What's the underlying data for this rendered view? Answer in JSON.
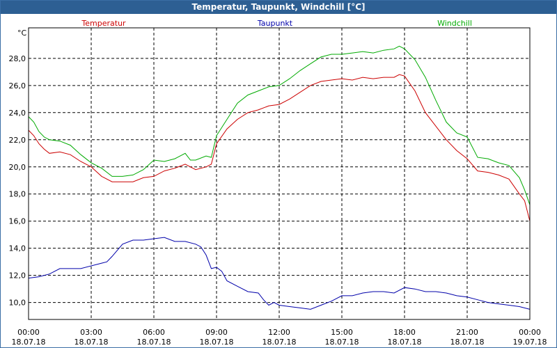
{
  "window": {
    "title": "Temperatur, Taupunkt, Windchill [°C]"
  },
  "chart_data": {
    "type": "line",
    "title": "Temperatur, Taupunkt, Windchill [°C]",
    "ylabel": "°C",
    "xlabel": "",
    "ylim": [
      8.75,
      30.25
    ],
    "xlim": [
      0,
      24
    ],
    "grid": true,
    "legend_position": "top",
    "y_ticks": [
      10,
      12,
      14,
      16,
      18,
      20,
      22,
      24,
      26,
      28
    ],
    "y_tick_labels": [
      "10,0",
      "12,0",
      "14,0",
      "16,0",
      "18,0",
      "20,0",
      "22,0",
      "24,0",
      "26,0",
      "28,0"
    ],
    "x_ticks": [
      0,
      3,
      6,
      9,
      12,
      15,
      18,
      21,
      24
    ],
    "x_tick_times": [
      "00:00",
      "03:00",
      "06:00",
      "09:00",
      "12:00",
      "15:00",
      "18:00",
      "21:00",
      "00:00"
    ],
    "x_tick_dates": [
      "18.07.18",
      "18.07.18",
      "18.07.18",
      "18.07.18",
      "18.07.18",
      "18.07.18",
      "18.07.18",
      "18.07.18",
      "19.07.18"
    ],
    "series": [
      {
        "name": "Temperatur",
        "color": "#cc0000",
        "x": [
          0,
          0.25,
          0.5,
          0.75,
          1,
          1.5,
          2,
          2.5,
          3,
          3.5,
          4,
          4.5,
          5,
          5.5,
          6,
          6.5,
          7,
          7.5,
          7.75,
          8,
          8.5,
          8.75,
          9,
          9.5,
          10,
          10.5,
          11,
          11.5,
          12,
          12.5,
          13,
          13.5,
          14,
          14.5,
          15,
          15.5,
          16,
          16.5,
          17,
          17.5,
          17.75,
          18,
          18.5,
          19,
          19.5,
          20,
          20.5,
          21,
          21.5,
          22,
          22.5,
          23,
          23.5,
          23.75,
          24
        ],
        "values": [
          22.7,
          22.3,
          21.7,
          21.3,
          21.0,
          21.1,
          20.9,
          20.4,
          20.0,
          19.3,
          18.9,
          18.9,
          18.9,
          19.2,
          19.3,
          19.7,
          19.9,
          20.2,
          20.0,
          19.8,
          20.0,
          20.2,
          21.7,
          22.8,
          23.5,
          24.0,
          24.2,
          24.5,
          24.6,
          25.0,
          25.5,
          26.0,
          26.3,
          26.4,
          26.5,
          26.4,
          26.6,
          26.5,
          26.6,
          26.6,
          26.8,
          26.7,
          25.6,
          24.0,
          23.0,
          22.0,
          21.2,
          20.6,
          19.7,
          19.6,
          19.4,
          19.1,
          18.0,
          17.5,
          16.0
        ]
      },
      {
        "name": "Taupunkt",
        "color": "#0000aa",
        "x": [
          0,
          0.5,
          1,
          1.5,
          2,
          2.5,
          3,
          3.5,
          3.75,
          4,
          4.5,
          5,
          5.5,
          6,
          6.5,
          7,
          7.5,
          8,
          8.25,
          8.5,
          8.75,
          9,
          9.25,
          9.5,
          10,
          10.5,
          11,
          11.25,
          11.5,
          11.75,
          12,
          12.5,
          13,
          13.5,
          14,
          14.5,
          15,
          15.5,
          16,
          16.5,
          17,
          17.5,
          18,
          18.5,
          19,
          19.5,
          20,
          20.5,
          21,
          21.5,
          22,
          22.5,
          23,
          23.5,
          24
        ],
        "values": [
          11.8,
          11.9,
          12.1,
          12.5,
          12.5,
          12.5,
          12.7,
          12.9,
          13.0,
          13.4,
          14.3,
          14.6,
          14.6,
          14.7,
          14.8,
          14.5,
          14.5,
          14.3,
          14.1,
          13.5,
          12.5,
          12.6,
          12.3,
          11.6,
          11.2,
          10.8,
          10.7,
          10.2,
          9.8,
          10.0,
          9.8,
          9.7,
          9.6,
          9.5,
          9.8,
          10.1,
          10.5,
          10.5,
          10.7,
          10.8,
          10.8,
          10.7,
          11.1,
          11.0,
          10.8,
          10.8,
          10.7,
          10.5,
          10.4,
          10.2,
          10.0,
          9.9,
          9.8,
          9.7,
          9.5
        ]
      },
      {
        "name": "Windchill",
        "color": "#00aa00",
        "x": [
          0,
          0.25,
          0.5,
          0.75,
          1,
          1.5,
          2,
          2.5,
          3,
          3.5,
          4,
          4.5,
          5,
          5.5,
          6,
          6.5,
          7,
          7.5,
          7.75,
          8,
          8.5,
          8.75,
          9,
          9.5,
          10,
          10.5,
          11,
          11.5,
          12,
          12.5,
          13,
          13.5,
          14,
          14.5,
          15,
          15.5,
          16,
          16.5,
          17,
          17.5,
          17.75,
          18,
          18.5,
          19,
          19.5,
          20,
          20.5,
          21,
          21.5,
          22,
          22.5,
          23,
          23.5,
          23.75,
          24
        ],
        "values": [
          23.7,
          23.3,
          22.6,
          22.2,
          22.0,
          21.9,
          21.6,
          20.9,
          20.3,
          19.9,
          19.3,
          19.3,
          19.4,
          19.8,
          20.5,
          20.4,
          20.6,
          21.0,
          20.5,
          20.5,
          20.8,
          20.7,
          22.3,
          23.5,
          24.7,
          25.3,
          25.6,
          25.9,
          26.0,
          26.5,
          27.1,
          27.6,
          28.1,
          28.3,
          28.3,
          28.4,
          28.5,
          28.4,
          28.6,
          28.7,
          28.9,
          28.7,
          27.9,
          26.6,
          24.9,
          23.3,
          22.5,
          22.2,
          20.7,
          20.6,
          20.3,
          20.1,
          19.2,
          18.3,
          17.2
        ]
      }
    ]
  }
}
